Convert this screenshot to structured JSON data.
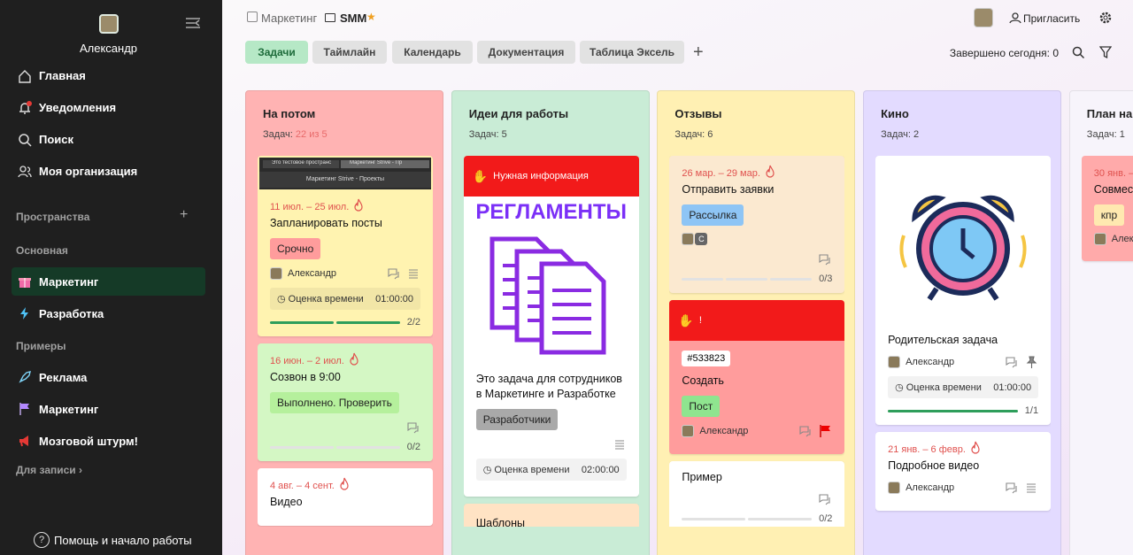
{
  "sidebar": {
    "user_name": "Александр",
    "nav": [
      "Главная",
      "Уведомления",
      "Поиск",
      "Моя организация"
    ],
    "spaces_label": "Пространства",
    "sections": [
      {
        "title": "Основная",
        "items": [
          "Маркетинг",
          "Разработка"
        ]
      },
      {
        "title": "Примеры",
        "items": [
          "Реклама",
          "Маркетинг",
          "Мозговой штурм!"
        ]
      }
    ],
    "records": "Для записи",
    "help": "Помощь и начало работы"
  },
  "header": {
    "breadcrumb": [
      "Маркетинг",
      "SMM"
    ],
    "invite": "Пригласить",
    "tabs": [
      "Задачи",
      "Таймлайн",
      "Календарь",
      "Документация",
      "Таблица Эксель"
    ],
    "done_today": "Завершено сегодня: 0"
  },
  "board": {
    "tasks_label": "Задач:",
    "time_label": "Оценка времени",
    "columns": [
      {
        "title": "На потом",
        "count": "22 из 5",
        "color": "#ffb3b3",
        "cards": [
          {
            "bg": "#fff3b0",
            "screenshot_texts": [
              "Это тестовое пространс",
              "Маркетинг Strive - Пр",
              "Маркетинг Strive - Проекты"
            ],
            "date": "11 июл. – 25 июл.",
            "title": "Запланировать посты",
            "tag": "Срочно",
            "tag_color": "#ff9c9c",
            "assignee": "Александр",
            "time": "01:00:00",
            "progress": "2/2"
          },
          {
            "bg": "#d4f7c4",
            "date": "16 июн. – 2 июл.",
            "title": "Созвон в 9:00",
            "tag": "Выполнено. Проверить",
            "tag_color": "#b5f09c",
            "progress": "0/2"
          },
          {
            "bg": "#ffffff",
            "date": "4 авг. – 4 сент.",
            "title": "Видео"
          }
        ]
      },
      {
        "title": "Идеи для работы",
        "count": "5",
        "color": "#c9ecd6",
        "cards": [
          {
            "bg": "#ffffff",
            "banner": "Нужная информация",
            "banner_color": "#f21a1a",
            "image_title": "РЕГЛАМЕНТЫ",
            "title": "Это задача для сотрудников в Маркетинге и Разработке",
            "tag": "Разработчики",
            "tag_color": "#a9a9a9",
            "time": "02:00:00"
          },
          {
            "bg": "#ffe3c4",
            "title": "Шаблоны"
          }
        ]
      },
      {
        "title": "Отзывы",
        "count": "6",
        "color": "#fff0b3",
        "cards": [
          {
            "bg": "#fbe9d0",
            "date": "26 мар. – 29 мар.",
            "title": "Отправить заявки",
            "tag": "Рассылка",
            "tag_color": "#8ec5f5",
            "avatar_letter": "С",
            "progress": "0/3"
          },
          {
            "bg": "#ff9c9c",
            "banner": "!",
            "banner_color": "#f21a1a",
            "id": "#533823",
            "title": "Создать",
            "tag": "Пост",
            "tag_color": "#8fe58f",
            "assignee": "Александр"
          },
          {
            "bg": "#ffffff",
            "title": "Пример",
            "progress": "0/2"
          }
        ]
      },
      {
        "title": "Кино",
        "count": "2",
        "color": "#e3dbff",
        "cards": [
          {
            "bg": "#ffffff",
            "title": "Родительская задача",
            "assignee": "Александр",
            "time": "01:00:00",
            "progress": "1/1"
          },
          {
            "bg": "#ffffff",
            "date": "21 янв. – 6 февр.",
            "title": "Подробное видео",
            "assignee": "Александр"
          }
        ]
      },
      {
        "title": "План на н",
        "count": "1",
        "color": "#f7f4fb",
        "cards": [
          {
            "bg": "#ffaaaa",
            "date": "30 янв. –",
            "title": "Совместн разработ",
            "tag": "кпр",
            "tag_color": "#ffe9b0",
            "assignee": "Алек"
          }
        ]
      }
    ]
  }
}
